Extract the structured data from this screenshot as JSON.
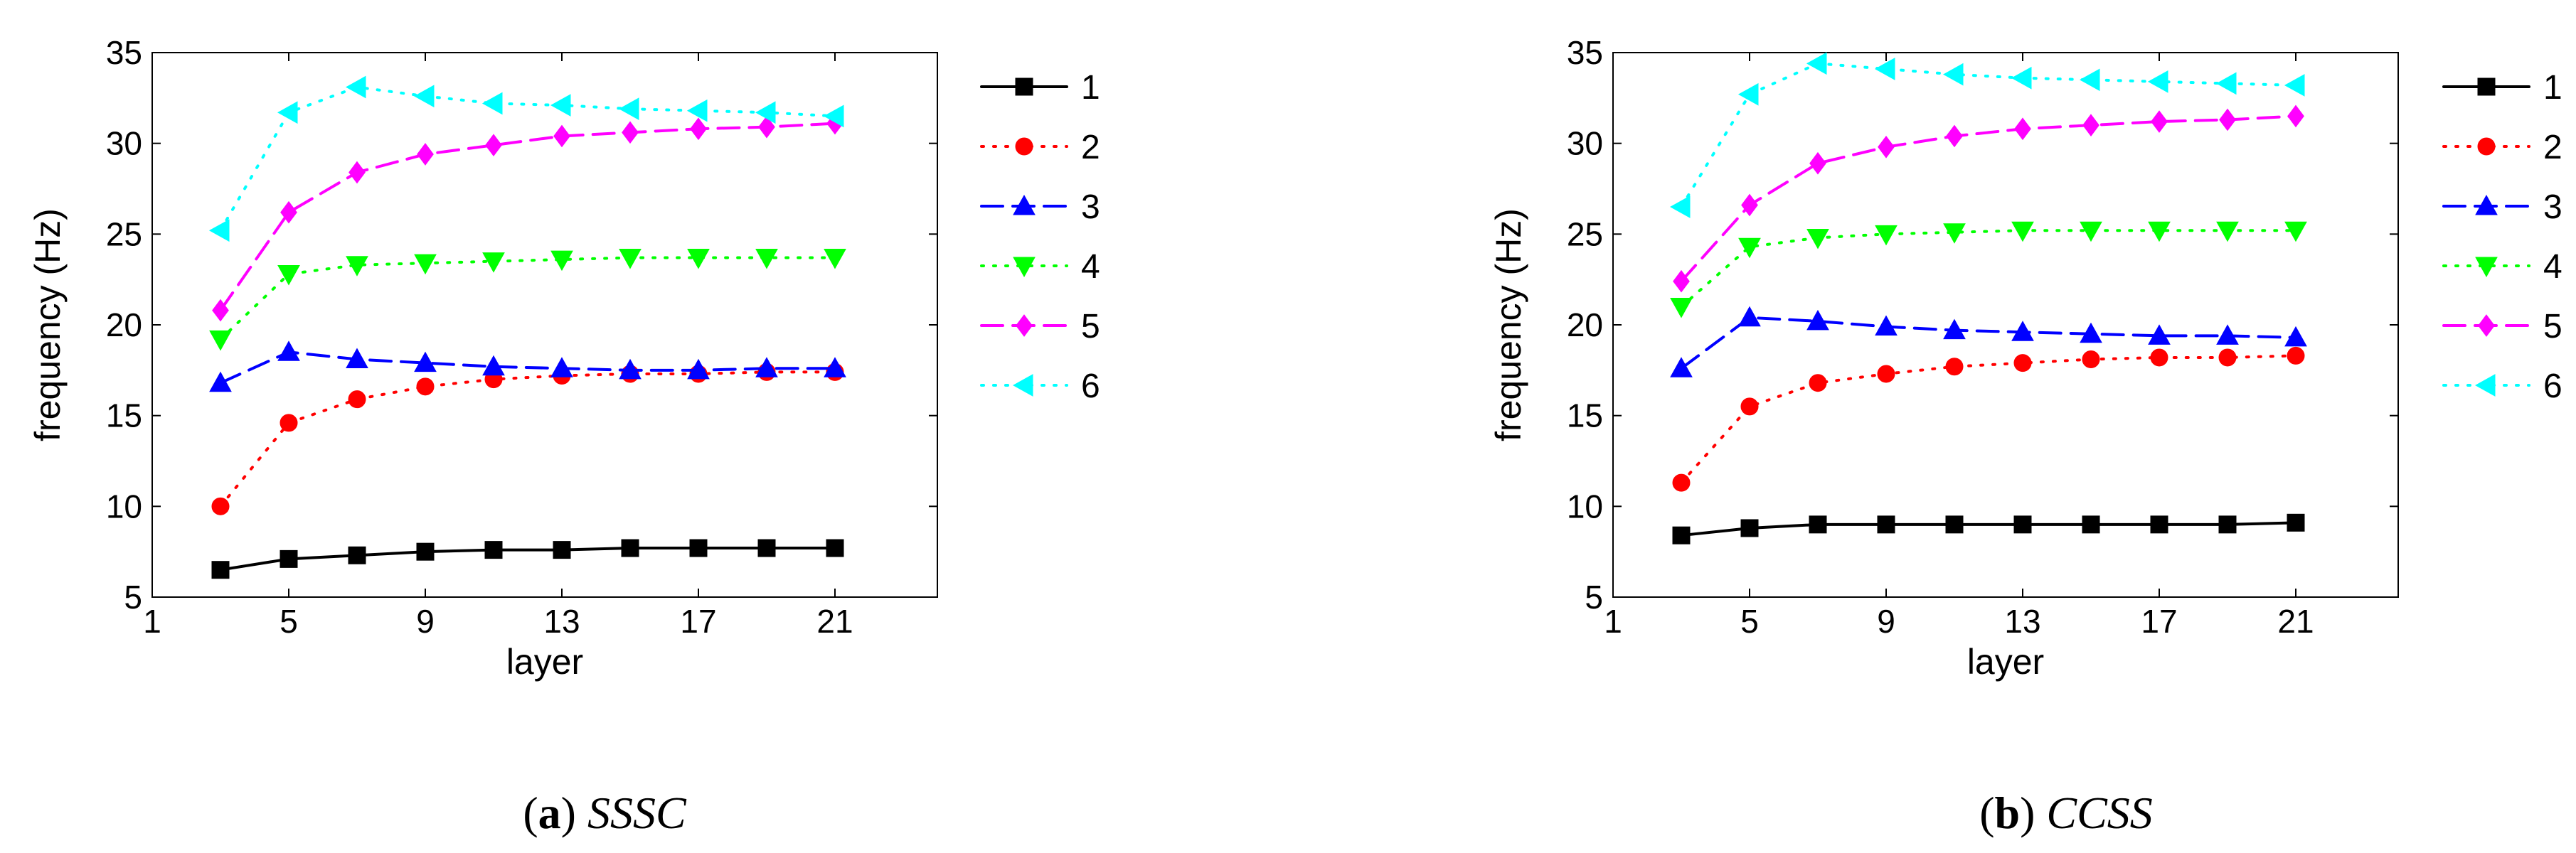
{
  "figure": {
    "chart_data": [
      {
        "type": "line",
        "caption_letter": "a",
        "caption_text": "SSSC",
        "xlabel": "layer",
        "ylabel": "frequency (Hz)",
        "xlim": [
          1,
          24
        ],
        "ylim": [
          5,
          35
        ],
        "xticks": [
          1,
          5,
          9,
          13,
          17,
          21
        ],
        "yticks": [
          5,
          10,
          15,
          20,
          25,
          30,
          35
        ],
        "grid": false,
        "legend_position": "right",
        "x": [
          3,
          5,
          7,
          9,
          11,
          13,
          15,
          17,
          19,
          21
        ],
        "series": [
          {
            "name": "1",
            "color": "#000000",
            "marker": "square",
            "line": "solid",
            "values": [
              6.5,
              7.1,
              7.3,
              7.5,
              7.6,
              7.6,
              7.7,
              7.7,
              7.7,
              7.7
            ]
          },
          {
            "name": "2",
            "color": "#ff0000",
            "marker": "circle",
            "line": "dotted",
            "values": [
              10.0,
              14.6,
              15.9,
              16.6,
              17.0,
              17.2,
              17.3,
              17.3,
              17.4,
              17.4
            ]
          },
          {
            "name": "3",
            "color": "#0000ff",
            "marker": "triangle-up",
            "line": "dashed",
            "values": [
              16.8,
              18.5,
              18.1,
              17.9,
              17.7,
              17.6,
              17.5,
              17.5,
              17.6,
              17.6
            ]
          },
          {
            "name": "4",
            "color": "#00ff00",
            "marker": "triangle-down",
            "line": "dotted",
            "values": [
              19.2,
              22.8,
              23.3,
              23.4,
              23.5,
              23.6,
              23.7,
              23.7,
              23.7,
              23.7
            ]
          },
          {
            "name": "5",
            "color": "#ff00ff",
            "marker": "diamond",
            "line": "dashed",
            "values": [
              20.8,
              26.2,
              28.4,
              29.4,
              29.9,
              30.4,
              30.6,
              30.8,
              30.9,
              31.1
            ]
          },
          {
            "name": "6",
            "color": "#00ffff",
            "marker": "triangle-left",
            "line": "dotted",
            "values": [
              25.2,
              31.7,
              33.1,
              32.6,
              32.2,
              32.1,
              31.9,
              31.8,
              31.7,
              31.5
            ]
          }
        ]
      },
      {
        "type": "line",
        "caption_letter": "b",
        "caption_text": "CCSS",
        "xlabel": "layer",
        "ylabel": "frequency (Hz)",
        "xlim": [
          1,
          24
        ],
        "ylim": [
          5,
          35
        ],
        "xticks": [
          1,
          5,
          9,
          13,
          17,
          21
        ],
        "yticks": [
          5,
          10,
          15,
          20,
          25,
          30,
          35
        ],
        "grid": false,
        "legend_position": "right",
        "x": [
          3,
          5,
          7,
          9,
          11,
          13,
          15,
          17,
          19,
          21
        ],
        "series": [
          {
            "name": "1",
            "color": "#000000",
            "marker": "square",
            "line": "solid",
            "values": [
              8.4,
              8.8,
              9.0,
              9.0,
              9.0,
              9.0,
              9.0,
              9.0,
              9.0,
              9.1
            ]
          },
          {
            "name": "2",
            "color": "#ff0000",
            "marker": "circle",
            "line": "dotted",
            "values": [
              11.3,
              15.5,
              16.8,
              17.3,
              17.7,
              17.9,
              18.1,
              18.2,
              18.2,
              18.3
            ]
          },
          {
            "name": "3",
            "color": "#0000ff",
            "marker": "triangle-up",
            "line": "dashed",
            "values": [
              17.6,
              20.4,
              20.2,
              19.9,
              19.7,
              19.6,
              19.5,
              19.4,
              19.4,
              19.3
            ]
          },
          {
            "name": "4",
            "color": "#00ff00",
            "marker": "triangle-down",
            "line": "dotted",
            "values": [
              21.0,
              24.3,
              24.8,
              25.0,
              25.1,
              25.2,
              25.2,
              25.2,
              25.2,
              25.2
            ]
          },
          {
            "name": "5",
            "color": "#ff00ff",
            "marker": "diamond",
            "line": "dashed",
            "values": [
              22.4,
              26.6,
              28.9,
              29.8,
              30.4,
              30.8,
              31.0,
              31.2,
              31.3,
              31.5
            ]
          },
          {
            "name": "6",
            "color": "#00ffff",
            "marker": "triangle-left",
            "line": "dotted",
            "values": [
              26.5,
              32.7,
              34.4,
              34.1,
              33.8,
              33.6,
              33.5,
              33.4,
              33.3,
              33.2
            ]
          }
        ]
      }
    ]
  }
}
